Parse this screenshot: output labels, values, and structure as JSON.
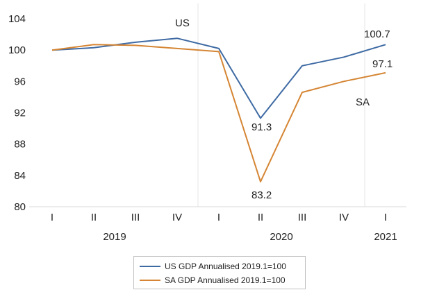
{
  "chart_data": {
    "type": "line",
    "title": "",
    "xlabel": "",
    "ylabel": "",
    "ylim": [
      80,
      104
    ],
    "yticks": [
      80,
      84,
      88,
      92,
      96,
      100,
      104
    ],
    "grid": false,
    "legend_position": "bottom",
    "x": [
      "I",
      "II",
      "III",
      "IV",
      "I",
      "II",
      "III",
      "IV",
      "I"
    ],
    "year_labels": [
      {
        "label": "2019",
        "quarter_index": 1.5
      },
      {
        "label": "2020",
        "quarter_index": 5.5
      },
      {
        "label": "2021",
        "quarter_index": 8
      }
    ],
    "year_separators": [
      3.5,
      7.5
    ],
    "series": [
      {
        "name": "US GDP Annualised 2019.1=100",
        "color": "#3e6aa3",
        "values": [
          100.0,
          100.3,
          101.0,
          101.5,
          100.2,
          91.3,
          98.0,
          99.1,
          100.7
        ]
      },
      {
        "name": "SA GDP Annualised 2019.1=100",
        "color": "#d58533",
        "values": [
          100.0,
          100.7,
          100.6,
          100.2,
          99.8,
          83.2,
          94.6,
          96.0,
          97.1
        ]
      }
    ],
    "annotations": [
      {
        "text": "US"
      },
      {
        "text": "SA"
      },
      {
        "text": "91.3"
      },
      {
        "text": "83.2"
      },
      {
        "text": "100.7"
      },
      {
        "text": "97.1"
      }
    ]
  }
}
